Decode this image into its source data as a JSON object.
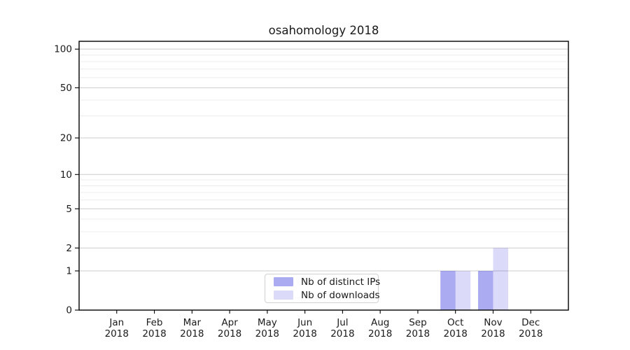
{
  "chart_data": {
    "type": "bar",
    "title": "osahomology 2018",
    "categories": [
      "Jan 2018",
      "Feb 2018",
      "Mar 2018",
      "Apr 2018",
      "May 2018",
      "Jun 2018",
      "Jul 2018",
      "Aug 2018",
      "Sep 2018",
      "Oct 2018",
      "Nov 2018",
      "Dec 2018"
    ],
    "series": [
      {
        "name": "Nb of distinct IPs",
        "color": "rgba(0,0,214,0.33)",
        "solid_hex": "#ababf3",
        "values": [
          0,
          0,
          0,
          0,
          0,
          0,
          0,
          0,
          0,
          1,
          1,
          0
        ]
      },
      {
        "name": "Nb of downloads",
        "color": "rgba(0,0,214,0.14)",
        "solid_hex": "#dcdcf8",
        "values": [
          0,
          0,
          0,
          0,
          0,
          0,
          0,
          0,
          0,
          1,
          2,
          0
        ]
      }
    ],
    "y_axis": {
      "scale": "log1p",
      "ticks": [
        0,
        1,
        2,
        5,
        10,
        20,
        50,
        100
      ],
      "minor_ticks": [
        3,
        4,
        6,
        7,
        8,
        9,
        30,
        40,
        60,
        70,
        80,
        90
      ],
      "range": [
        0,
        115
      ]
    },
    "x_axis": {
      "year_line": "2018"
    },
    "grid": {
      "major_color": "#cccccc",
      "minor_color": "#ececec"
    },
    "style": {
      "text_color": "#1a1a1a",
      "spine_color": "#000000",
      "legend_border_color": "#d2d2d2",
      "background": "#ffffff"
    },
    "legend": {
      "position": "bottom-center"
    }
  }
}
